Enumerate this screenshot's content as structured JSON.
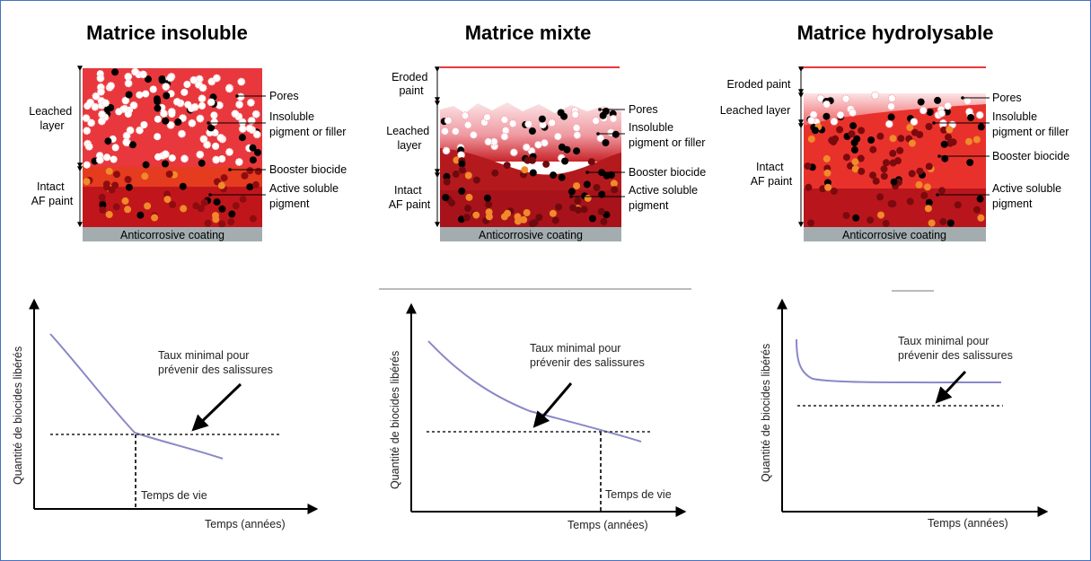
{
  "panels": [
    {
      "title": "Matrice insoluble",
      "layer_labels": {
        "leached": [
          "Leached",
          "layer"
        ],
        "intact": [
          "Intact",
          "AF paint"
        ]
      },
      "callouts": [
        "Pores",
        "Insoluble",
        "pigment or filler",
        "Booster biocide",
        "Active soluble",
        "pigment"
      ],
      "coating": "Anticorrosive coating",
      "graph": {
        "ylabel": "Quantité de biocides libérés",
        "xlabel": "Temps (années)",
        "annotation": [
          "Taux minimal pour",
          "prévenir des salissures"
        ],
        "lifetime": "Temps de vie"
      }
    },
    {
      "title": "Matrice mixte",
      "layer_labels": {
        "eroded": [
          "Eroded",
          "paint"
        ],
        "leached": [
          "Leached",
          "layer"
        ],
        "intact": [
          "Intact",
          "AF paint"
        ]
      },
      "callouts": [
        "Pores",
        "Insoluble",
        "pigment or filler",
        "Booster biocide",
        "Active soluble",
        "pigment"
      ],
      "coating": "Anticorrosive coating",
      "graph": {
        "ylabel": "Quantité de biocides libérés",
        "xlabel": "Temps (années)",
        "annotation": [
          "Taux minimal pour",
          "prévenir des salissures"
        ],
        "lifetime": "Temps de vie"
      }
    },
    {
      "title": "Matrice hydrolysable",
      "layer_labels": {
        "eroded": [
          "Eroded paint"
        ],
        "leached": [
          "Leached layer"
        ],
        "intact": [
          "Intact",
          "AF paint"
        ]
      },
      "callouts": [
        "Pores",
        "Insoluble",
        "pigment or filler",
        "Booster biocide",
        "Active soluble",
        "pigment"
      ],
      "coating": "Anticorrosive coating",
      "graph": {
        "ylabel": "Quantité de biocides libérés",
        "xlabel": "Temps (années)",
        "annotation": [
          "Taux minimal pour",
          "prévenir des salissures"
        ]
      }
    }
  ],
  "colors": {
    "leached_red": "#e8383d",
    "booster_band": "#e53b1f",
    "intact_dark": "#c0161b",
    "coating_gray": "#a3adb0",
    "curve": "#8a88c8",
    "frame": "#4472c4"
  }
}
